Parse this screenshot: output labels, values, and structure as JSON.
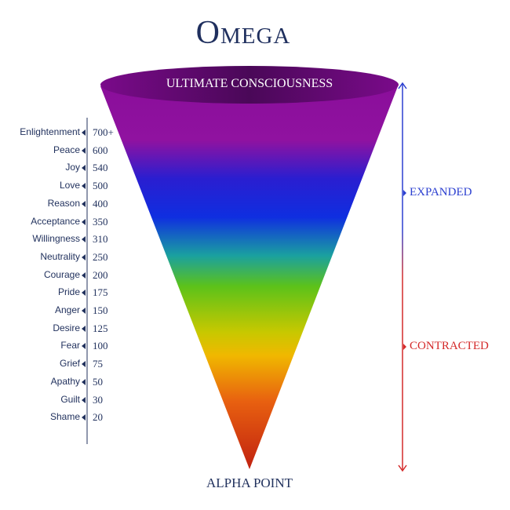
{
  "title": "Omega",
  "top_label": "ULTIMATE CONSCIOUSNESS",
  "bottom_label": "ALPHA POINT",
  "levels": [
    {
      "name": "Enlightenment",
      "value": "700+"
    },
    {
      "name": "Peace",
      "value": "600"
    },
    {
      "name": "Joy",
      "value": "540"
    },
    {
      "name": "Love",
      "value": "500"
    },
    {
      "name": "Reason",
      "value": "400"
    },
    {
      "name": "Acceptance",
      "value": "350"
    },
    {
      "name": "Willingness",
      "value": "310"
    },
    {
      "name": "Neutrality",
      "value": "250"
    },
    {
      "name": "Courage",
      "value": "200"
    },
    {
      "name": "Pride",
      "value": "175"
    },
    {
      "name": "Anger",
      "value": "150"
    },
    {
      "name": "Desire",
      "value": "125"
    },
    {
      "name": "Fear",
      "value": "100"
    },
    {
      "name": "Grief",
      "value": "75"
    },
    {
      "name": "Apathy",
      "value": "50"
    },
    {
      "name": "Guilt",
      "value": "30"
    },
    {
      "name": "Shame",
      "value": "20"
    }
  ],
  "axis": {
    "expanded_label": "EXPANDED",
    "contracted_label": "CONTRACTED",
    "expanded_color": "#2b3fd0",
    "contracted_color": "#d42a2a"
  },
  "colors": {
    "text": "#22325e",
    "cone": [
      "#8a0e9a",
      "#9a12a0",
      "#2a1ed0",
      "#0f2ee0",
      "#1aa0a0",
      "#5cc21a",
      "#e8c800",
      "#f0a800",
      "#e85a10",
      "#c82010"
    ]
  }
}
